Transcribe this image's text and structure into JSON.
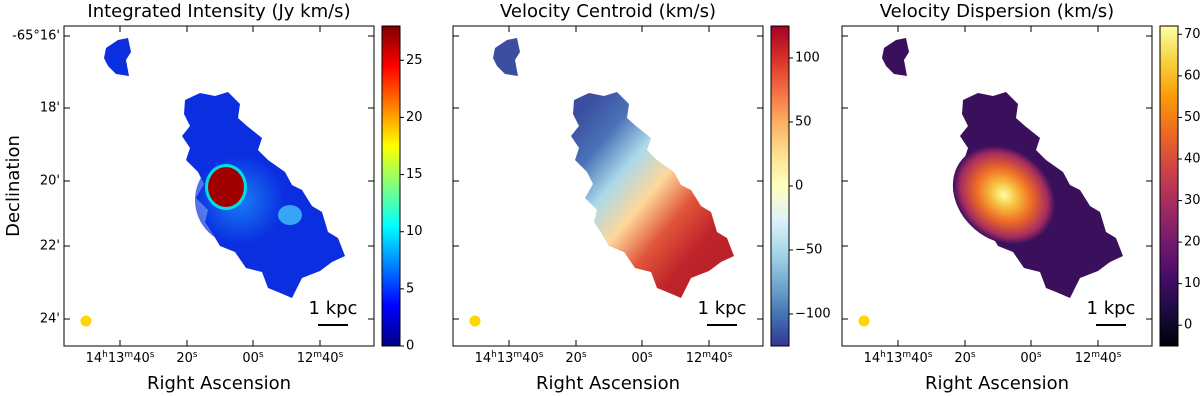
{
  "chart_data": [
    {
      "type": "image",
      "title": "Integrated Intensity (Jy km/s)",
      "colormap": "jet",
      "ylabel": "Declination",
      "xlabel": "Right Ascension",
      "xticks": [
        [
          "14",
          "h",
          "13",
          "m",
          "40",
          "s"
        ],
        [
          "20",
          "s"
        ],
        [
          "00",
          "s"
        ],
        [
          "12",
          "m",
          "40",
          "s"
        ]
      ],
      "dec_ticks": [
        "-65°16'",
        "18'",
        "20'",
        "22'",
        "24'"
      ],
      "scale_bar": "1 kpc",
      "ylim": [
        0,
        28
      ],
      "yticks": [
        0,
        5,
        10,
        15,
        20,
        25
      ]
    },
    {
      "type": "image",
      "title": "Velocity Centroid (km/s)",
      "colormap": "RdYlBu_r",
      "xlabel": "Right Ascension",
      "xticks": [
        [
          "14",
          "h",
          "13",
          "m",
          "40",
          "s"
        ],
        [
          "20",
          "s"
        ],
        [
          "00",
          "s"
        ],
        [
          "12",
          "m",
          "40",
          "s"
        ]
      ],
      "scale_bar": "1 kpc",
      "ylim": [
        -125,
        125
      ],
      "yticks": [
        {
          "value": -100,
          "label": "−100"
        },
        {
          "value": -50,
          "label": "−50"
        },
        0,
        50,
        100
      ]
    },
    {
      "type": "image",
      "title": "Velocity Dispersion (km/s)",
      "colormap": "inferno",
      "xlabel": "Right Ascension",
      "xticks": [
        [
          "14",
          "h",
          "13",
          "m",
          "40",
          "s"
        ],
        [
          "20",
          "s"
        ],
        [
          "00",
          "s"
        ],
        [
          "12",
          "m",
          "40",
          "s"
        ]
      ],
      "scale_bar": "1 kpc",
      "ylim": [
        -5,
        72
      ],
      "yticks": [
        0,
        10,
        20,
        30,
        40,
        50,
        60,
        70
      ]
    }
  ]
}
